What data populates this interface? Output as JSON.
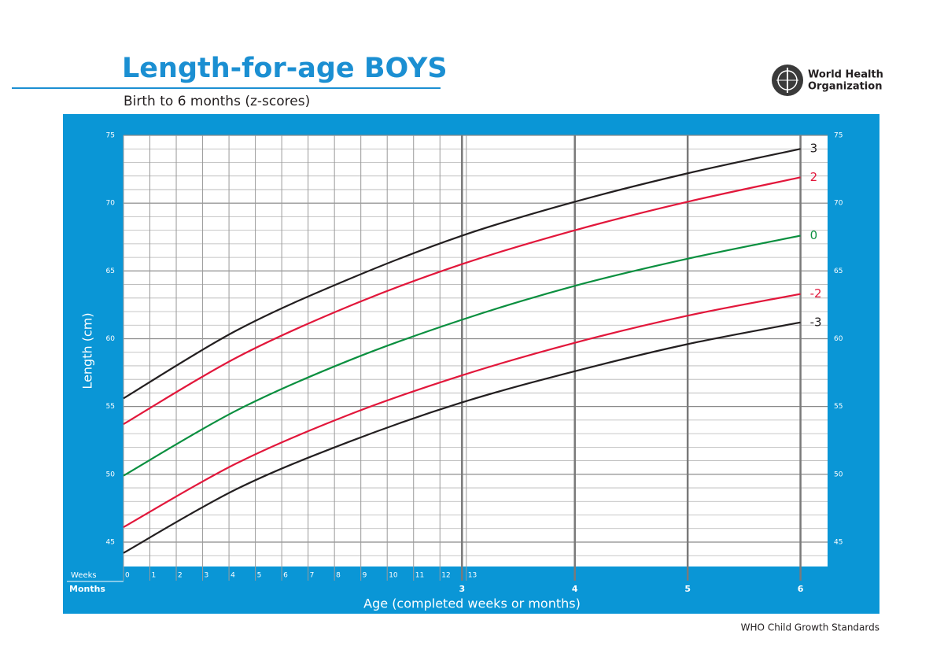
{
  "chart_data": {
    "type": "line",
    "title": "Length-for-age BOYS",
    "subtitle": "Birth to 6 months (z-scores)",
    "logo_text": [
      "World Health",
      "Organization"
    ],
    "footer": "WHO Child Growth Standards",
    "y_label": "Length (cm)",
    "x_label": "Age (completed weeks or months)",
    "x_row_label": "Months",
    "x2_row_label": "Weeks",
    "x": [
      0,
      1,
      2,
      3,
      4,
      5,
      6
    ],
    "xlim": [
      0,
      6.24
    ],
    "xticks": [
      3,
      4,
      5,
      6
    ],
    "x2lim": [
      0,
      26.7
    ],
    "x2ticks": [
      0,
      1,
      2,
      3,
      4,
      5,
      6,
      7,
      8,
      9,
      10,
      11,
      12,
      13
    ],
    "ylim": [
      43.2,
      75
    ],
    "yticks": [
      45,
      50,
      55,
      60,
      65,
      70,
      75
    ],
    "grid": true,
    "series": [
      {
        "name": "3",
        "color": "#231f20",
        "values": [
          55.6,
          60.6,
          64.4,
          67.6,
          70.1,
          72.2,
          74.0
        ]
      },
      {
        "name": "2",
        "color": "#e2173b",
        "values": [
          53.7,
          58.6,
          62.4,
          65.5,
          68.0,
          70.1,
          71.9
        ]
      },
      {
        "name": "0",
        "color": "#0a8f3f",
        "values": [
          49.9,
          54.7,
          58.4,
          61.4,
          63.9,
          65.9,
          67.6
        ]
      },
      {
        "name": "-2",
        "color": "#e2173b",
        "values": [
          46.1,
          50.8,
          54.4,
          57.3,
          59.7,
          61.7,
          63.3
        ]
      },
      {
        "name": "-3",
        "color": "#231f20",
        "values": [
          44.2,
          48.9,
          52.4,
          55.3,
          57.6,
          59.6,
          61.2
        ]
      }
    ]
  }
}
